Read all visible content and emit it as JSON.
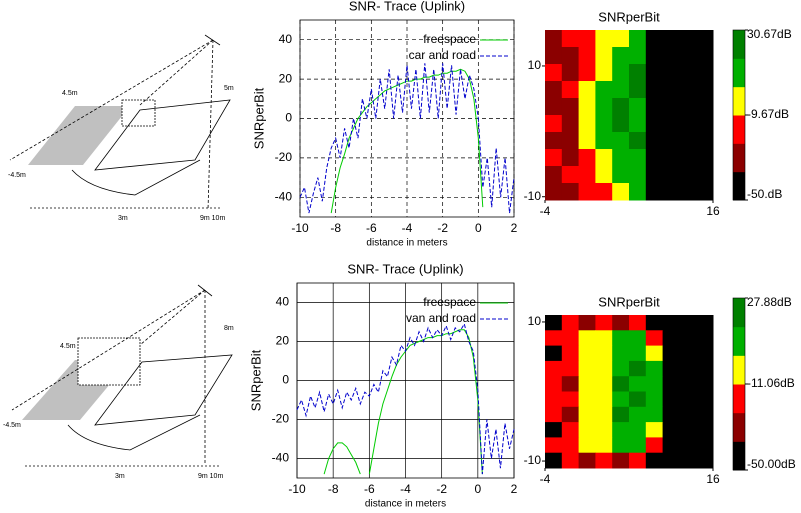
{
  "diagrams": [
    {
      "labels": [
        "4.5m",
        "-4.5m",
        "3m",
        "9m 10m",
        "5m"
      ]
    },
    {
      "labels": [
        "4.5m",
        "-4.5m",
        "3m",
        "9m 10m",
        "8m"
      ]
    }
  ],
  "chart_data": [
    {
      "type": "line",
      "title": "SNR- Trace (Uplink)",
      "ylabel": "SNRperBit",
      "xlabel": "distance in meters",
      "x": [
        -10,
        -9.75,
        -9.5,
        -9.25,
        -9,
        -8.75,
        -8.5,
        -8.25,
        -8,
        -7.75,
        -7.5,
        -7.25,
        -7,
        -6.75,
        -6.5,
        -6.25,
        -6,
        -5.75,
        -5.5,
        -5.25,
        -5,
        -4.75,
        -4.5,
        -4.25,
        -4,
        -3.75,
        -3.5,
        -3.25,
        -3,
        -2.75,
        -2.5,
        -2.25,
        -2,
        -1.75,
        -1.5,
        -1.25,
        -1,
        -0.75,
        -0.5,
        -0.25,
        0,
        0.25,
        0.5,
        0.75,
        1,
        1.25,
        1.5,
        1.75,
        2
      ],
      "series": [
        {
          "name": "freespace",
          "color": "#00cc00",
          "dash": "solid",
          "values": [
            null,
            null,
            null,
            null,
            null,
            null,
            null,
            -48,
            -35,
            -25,
            -18,
            -10,
            -5,
            0,
            3,
            6,
            8,
            10,
            12,
            14,
            15,
            16,
            17,
            18,
            19,
            19,
            20,
            20,
            21,
            21,
            22,
            22,
            23,
            23,
            24,
            24,
            25,
            24,
            20,
            10,
            -10,
            -45,
            null,
            null,
            null,
            null,
            null,
            null,
            null
          ]
        },
        {
          "name": "car and road",
          "color": "#0000cc",
          "dash": "dashed",
          "values": [
            -40,
            -35,
            -48,
            -38,
            -30,
            -42,
            -25,
            -15,
            -10,
            -20,
            -5,
            -15,
            0,
            -10,
            10,
            0,
            15,
            0,
            20,
            5,
            25,
            0,
            22,
            3,
            27,
            5,
            25,
            0,
            28,
            3,
            25,
            0,
            28,
            5,
            27,
            2,
            25,
            10,
            22,
            15,
            0,
            -35,
            -20,
            -45,
            -15,
            -40,
            -20,
            -48,
            -30
          ]
        }
      ],
      "xlim": [
        -10,
        2
      ],
      "xticks": [
        -10,
        -8,
        -6,
        -4,
        -2,
        0,
        2
      ],
      "ylim": [
        -50,
        50
      ],
      "yticks": [
        -40,
        -20,
        0,
        20,
        40
      ],
      "grid": "dashed",
      "legend": "upper right"
    },
    {
      "type": "heatmap",
      "title": "SNRperBit",
      "xlim": [
        -4,
        16
      ],
      "xticks": [
        -4,
        16
      ],
      "ylim": [
        -10.5,
        15.5
      ],
      "yticks": [
        -10,
        10
      ],
      "clim": [
        -50,
        30.67
      ],
      "cticks": [
        {
          "value": -50,
          "label": "-50.dB"
        },
        {
          "value": -9.67,
          "label": "-9.67dB"
        },
        {
          "value": 30.67,
          "label": "30.67dB"
        }
      ],
      "colors": [
        "#000000",
        "#8b0000",
        "#ff0000",
        "#ffff00",
        "#00b000",
        "#008000"
      ],
      "z": [
        [
          -30,
          -20,
          -15,
          -5,
          -5,
          10,
          -60,
          -60,
          -60,
          -60
        ],
        [
          -30,
          -30,
          -15,
          -5,
          5,
          10,
          -60,
          -60,
          -60,
          -60
        ],
        [
          -15,
          -30,
          -15,
          -5,
          10,
          20,
          -60,
          -60,
          -60,
          -60
        ],
        [
          -30,
          -20,
          -5,
          5,
          10,
          20,
          -60,
          -60,
          -60,
          -60
        ],
        [
          -30,
          -30,
          -5,
          10,
          20,
          10,
          -60,
          -60,
          -60,
          -60
        ],
        [
          -20,
          -30,
          -5,
          10,
          20,
          10,
          -60,
          -60,
          -60,
          -60
        ],
        [
          -30,
          -30,
          -5,
          5,
          10,
          20,
          -60,
          -60,
          -60,
          -60
        ],
        [
          -15,
          -30,
          -15,
          -5,
          10,
          10,
          -60,
          -60,
          -60,
          -60
        ],
        [
          -30,
          -20,
          -15,
          -5,
          5,
          10,
          -60,
          -60,
          -60,
          -60
        ],
        [
          -30,
          -30,
          -15,
          -15,
          -5,
          10,
          -60,
          -60,
          -60,
          -60
        ]
      ]
    },
    {
      "type": "line",
      "title": "SNR- Trace (Uplink)",
      "ylabel": "SNRperBit",
      "xlabel": "distance in meters",
      "x": [
        -10,
        -9.75,
        -9.5,
        -9.25,
        -9,
        -8.75,
        -8.5,
        -8.25,
        -8,
        -7.75,
        -7.5,
        -7.25,
        -7,
        -6.75,
        -6.5,
        -6.25,
        -6,
        -5.75,
        -5.5,
        -5.25,
        -5,
        -4.75,
        -4.5,
        -4.25,
        -4,
        -3.75,
        -3.5,
        -3.25,
        -3,
        -2.75,
        -2.5,
        -2.25,
        -2,
        -1.75,
        -1.5,
        -1.25,
        -1,
        -0.75,
        -0.5,
        -0.25,
        0,
        0.25,
        0.5,
        0.75,
        1,
        1.25,
        1.5,
        1.75,
        2
      ],
      "series": [
        {
          "name": "freespace",
          "color": "#00cc00",
          "dash": "solid",
          "values": [
            null,
            null,
            null,
            null,
            null,
            null,
            -48,
            -40,
            -35,
            -32,
            -32,
            -34,
            -38,
            -42,
            -48,
            null,
            -48,
            -35,
            -22,
            -12,
            -5,
            2,
            8,
            12,
            15,
            18,
            19,
            20,
            21,
            22,
            22,
            23,
            23,
            24,
            24,
            25,
            26,
            26,
            22,
            12,
            -10,
            -48,
            null,
            null,
            null,
            null,
            null,
            null,
            null
          ]
        },
        {
          "name": "van and road",
          "color": "#0000cc",
          "dash": "dashed",
          "values": [
            -15,
            -10,
            -18,
            -8,
            -14,
            -6,
            -16,
            -7,
            -12,
            -5,
            -14,
            -6,
            -10,
            -4,
            -12,
            -6,
            -8,
            -2,
            -6,
            5,
            2,
            12,
            8,
            18,
            15,
            22,
            18,
            25,
            20,
            27,
            22,
            26,
            23,
            28,
            21,
            27,
            25,
            29,
            20,
            15,
            -5,
            -48,
            -20,
            -40,
            -25,
            -45,
            -22,
            -35,
            -25
          ]
        }
      ],
      "xlim": [
        -10,
        2
      ],
      "xticks": [
        -10,
        -8,
        -6,
        -4,
        -2,
        0,
        2
      ],
      "ylim": [
        -50,
        50
      ],
      "yticks": [
        -40,
        -20,
        0,
        20,
        40
      ],
      "grid": "solid",
      "legend": "upper right"
    },
    {
      "type": "heatmap",
      "title": "SNRperBit",
      "xlim": [
        -4,
        16
      ],
      "xticks": [
        -4,
        16
      ],
      "ylim": [
        -11,
        11
      ],
      "yticks": [
        -10,
        10
      ],
      "clim": [
        -50,
        27.88
      ],
      "cticks": [
        {
          "value": -50,
          "label": "-50.00dB"
        },
        {
          "value": -11.06,
          "label": "-11.06dB"
        },
        {
          "value": 27.88,
          "label": "27.88dB"
        }
      ],
      "colors": [
        "#000000",
        "#8b0000",
        "#ff0000",
        "#ffff00",
        "#00b000",
        "#008000"
      ],
      "z": [
        [
          -60,
          -20,
          -30,
          -20,
          -30,
          -20,
          -60,
          -60,
          -60,
          -60
        ],
        [
          -20,
          -20,
          -5,
          -5,
          5,
          10,
          -20,
          -60,
          -60,
          -60
        ],
        [
          -60,
          -20,
          -5,
          -5,
          10,
          5,
          -5,
          -60,
          -60,
          -60
        ],
        [
          -20,
          -20,
          -5,
          -5,
          10,
          20,
          10,
          -60,
          -60,
          -60
        ],
        [
          -20,
          -30,
          -5,
          -5,
          20,
          10,
          5,
          -60,
          -60,
          -60
        ],
        [
          -20,
          -20,
          -5,
          -5,
          10,
          20,
          10,
          -60,
          -60,
          -60
        ],
        [
          -20,
          -30,
          -5,
          -5,
          20,
          10,
          5,
          -60,
          -60,
          -60
        ],
        [
          -60,
          -20,
          -5,
          -5,
          10,
          5,
          -5,
          -60,
          -60,
          -60
        ],
        [
          -20,
          -20,
          -5,
          -5,
          5,
          10,
          -20,
          -60,
          -60,
          -60
        ],
        [
          -60,
          -20,
          -30,
          -20,
          -30,
          -20,
          -60,
          -60,
          -60,
          -60
        ]
      ]
    }
  ]
}
